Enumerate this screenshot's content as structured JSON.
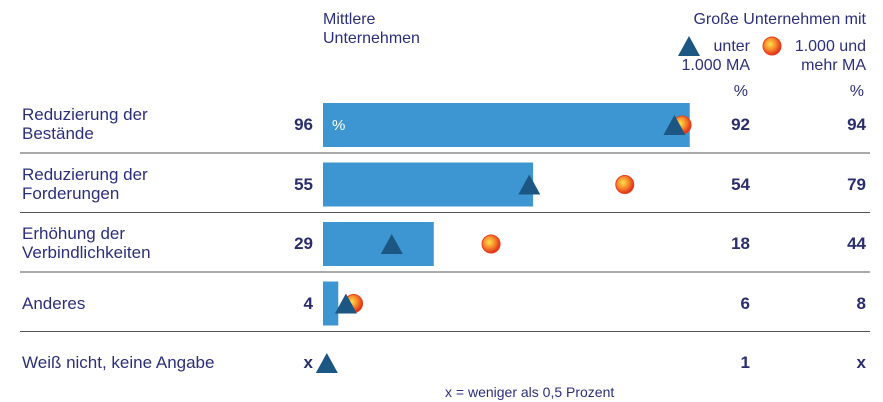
{
  "chart_data": {
    "type": "bar-marker",
    "column_title": "Mittlere\nUnternehmen",
    "group_title": "Große Unternehmen mit",
    "unit_label": "%",
    "footnote": "x = weniger als 0,5 Prozent",
    "categories": [
      "Reduzierung der\nBestände",
      "Reduzierung der\nForderungen",
      "Erhöhung der\nVerbindlichkeiten",
      "Anderes",
      "Weiß nicht, keine Angabe"
    ],
    "values": [
      96,
      55,
      29,
      4,
      null
    ],
    "value_labels": [
      "96",
      "55",
      "29",
      "4",
      "x"
    ],
    "color": "#3d96d2",
    "xlim": [
      0,
      100
    ],
    "series": [
      {
        "name": "unter\n1.000 MA",
        "marker": "triangle",
        "color": "#1c5683",
        "values": [
          92,
          54,
          18,
          6,
          1
        ],
        "value_labels": [
          "92",
          "54",
          "18",
          "6",
          "1"
        ]
      },
      {
        "name": "1.000 und\nmehr MA",
        "marker": "circle",
        "color": "#e8411e",
        "values": [
          94,
          79,
          44,
          8,
          null
        ],
        "value_labels": [
          "94",
          "79",
          "44",
          "8",
          "x"
        ]
      }
    ]
  }
}
